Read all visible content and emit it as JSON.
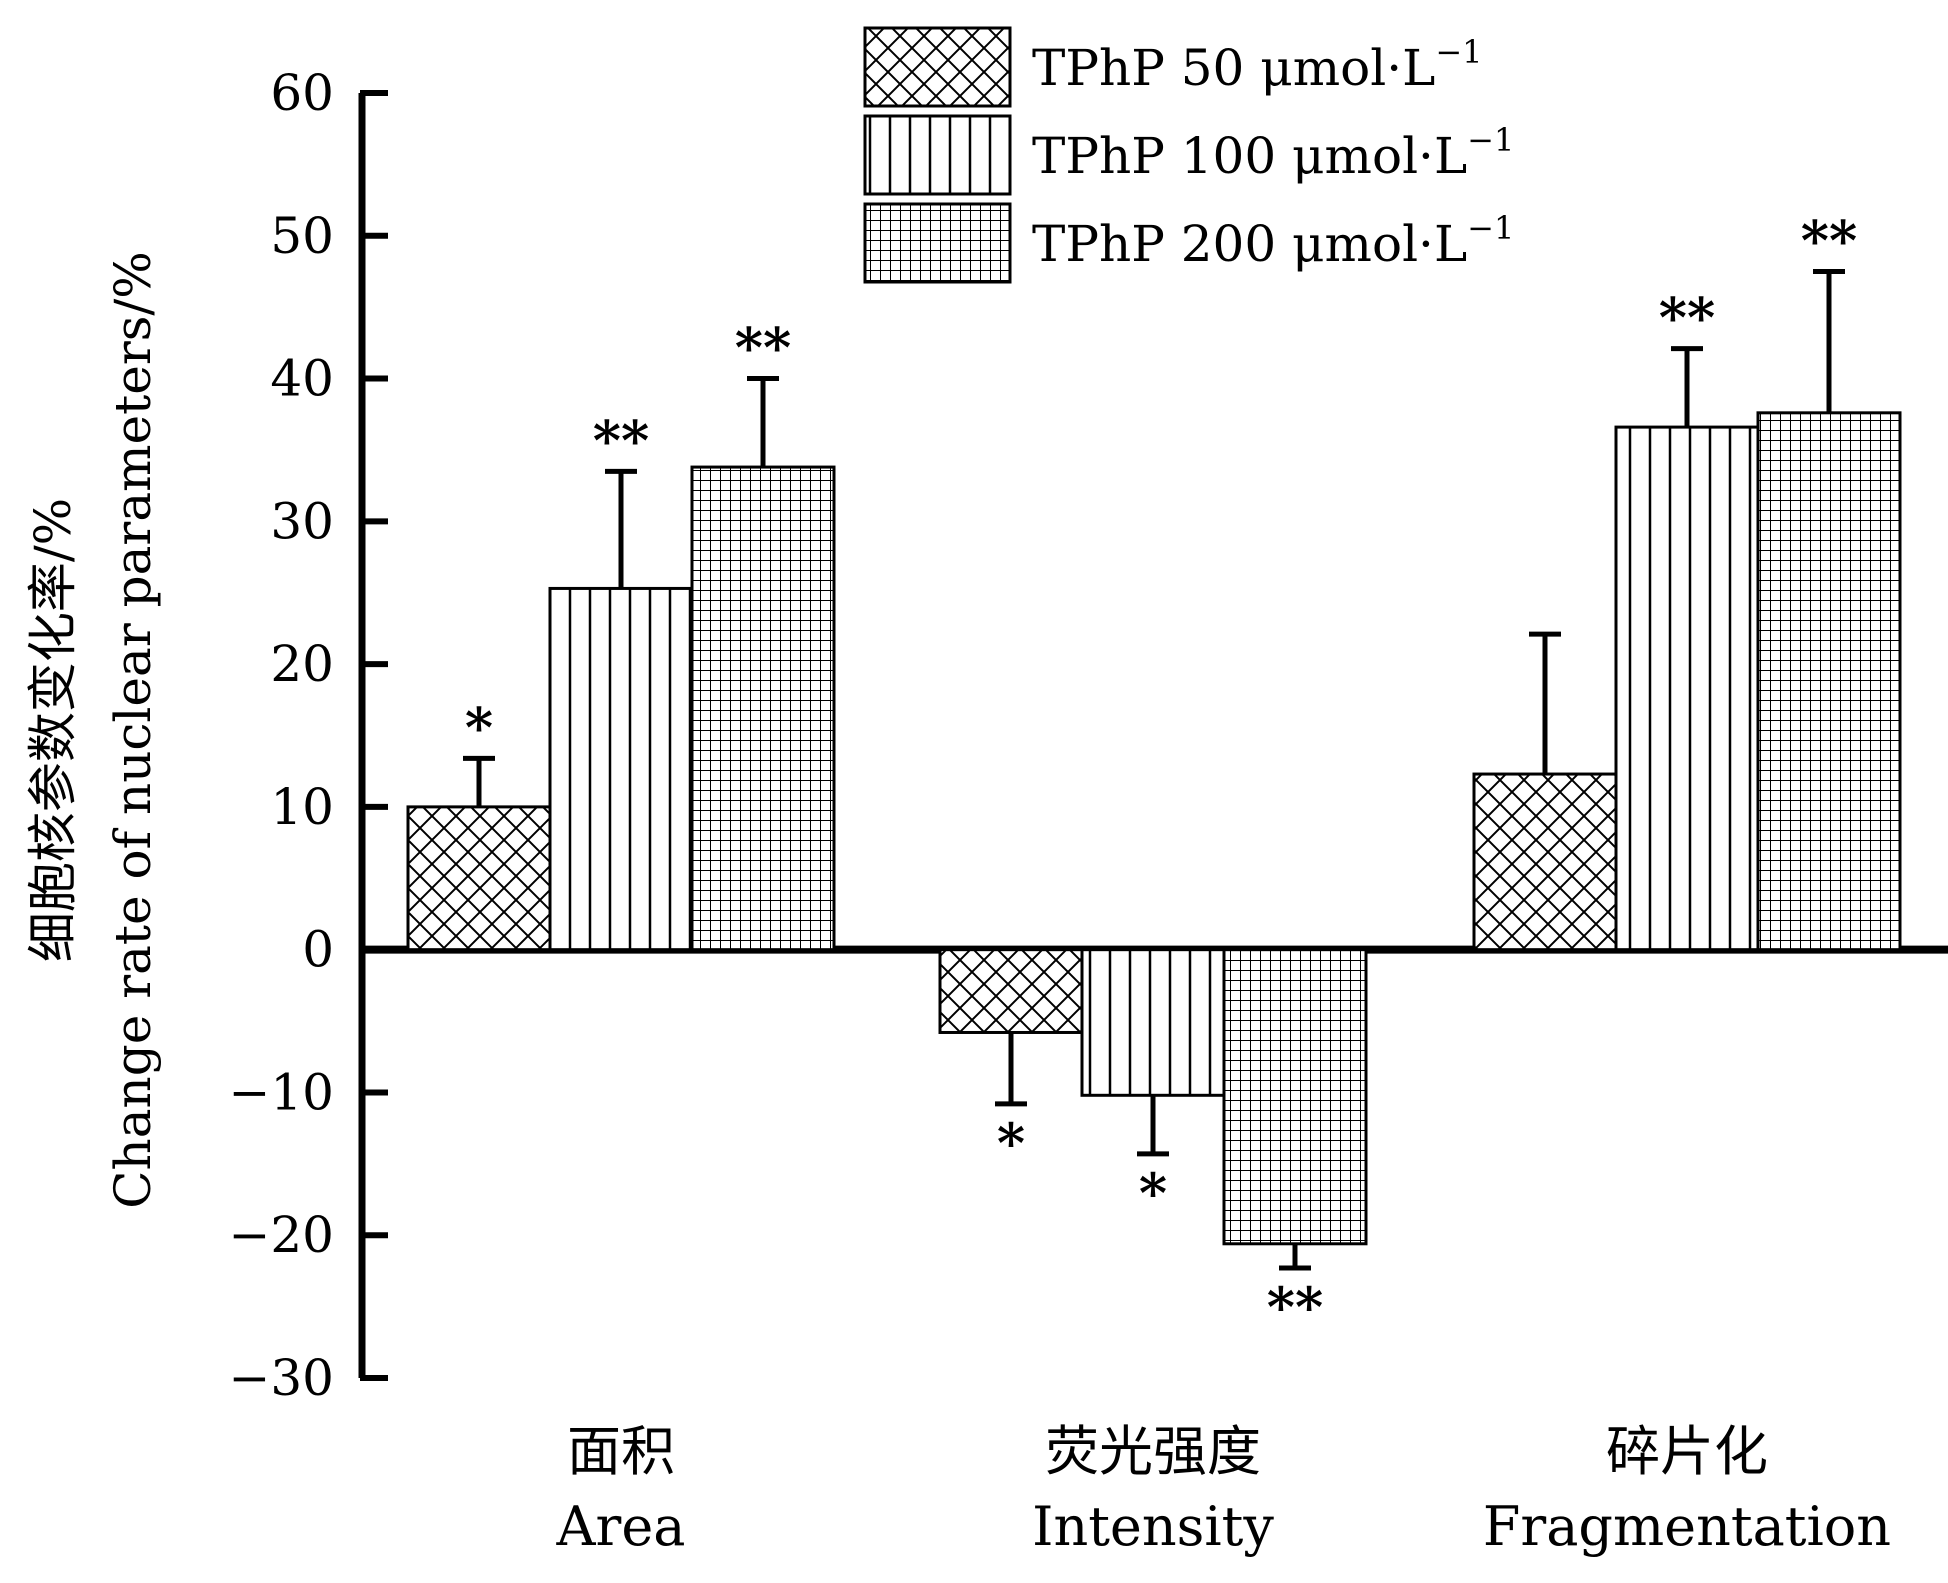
{
  "chart_data": {
    "type": "bar",
    "title": "",
    "ylabel_cn": "细胞核参数变化率/%",
    "ylabel_en": "Change rate of nuclear parameters/%",
    "ylim": [
      -30,
      60
    ],
    "yticks": [
      60,
      50,
      40,
      30,
      20,
      10,
      0,
      -10,
      -20,
      -30
    ],
    "ytick_labels": [
      "60",
      "50",
      "40",
      "30",
      "20",
      "10",
      "0",
      "−10",
      "−20",
      "−30"
    ],
    "categories": [
      {
        "cn": "面积",
        "en": "Area"
      },
      {
        "cn": "荧光强度",
        "en": "Intensity"
      },
      {
        "cn": "碎片化",
        "en": "Fragmentation"
      }
    ],
    "series": [
      {
        "name": "TPhP 50 μmol·L",
        "name_sup": "−1",
        "pattern": "crosshatch",
        "values": [
          10.0,
          -5.8,
          12.3
        ],
        "errors": [
          3.4,
          5.0,
          9.8
        ],
        "significance": [
          "*",
          "*",
          ""
        ]
      },
      {
        "name": "TPhP 100 μmol·L",
        "name_sup": "−1",
        "pattern": "vertical-lines",
        "values": [
          25.3,
          -10.2,
          36.6
        ],
        "errors": [
          8.2,
          4.1,
          5.5
        ],
        "significance": [
          "**",
          "*",
          "**"
        ]
      },
      {
        "name": "TPhP 200 μmol·L",
        "name_sup": "−1",
        "pattern": "grid",
        "values": [
          33.8,
          -20.6,
          37.6
        ],
        "errors": [
          6.2,
          1.7,
          9.9
        ],
        "significance": [
          "**",
          "**",
          "**"
        ]
      }
    ],
    "legend_position": "top-center",
    "grid": false,
    "colors": {
      "fill": "#ffffff",
      "stroke": "#000000"
    }
  }
}
